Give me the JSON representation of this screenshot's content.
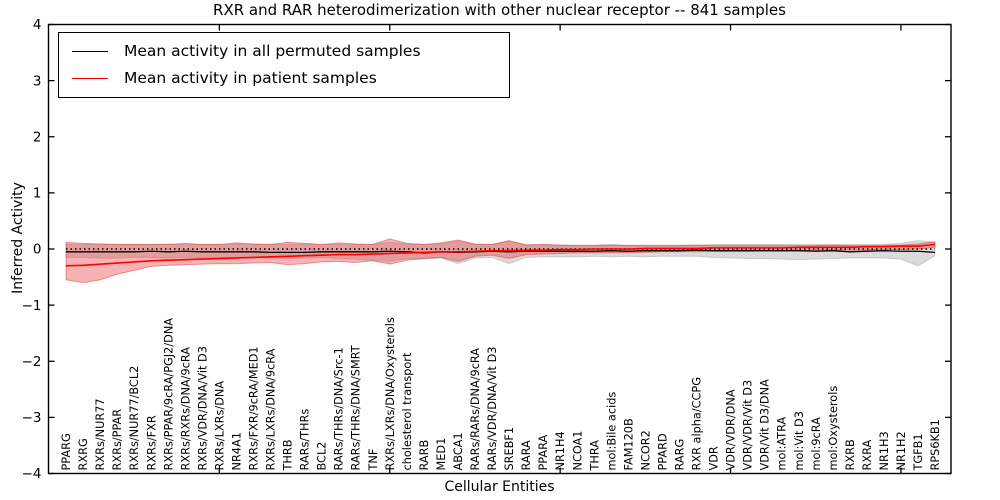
{
  "figure": {
    "title": "RXR and RAR heterodimerization with other nuclear receptor -- 841 samples",
    "xlabel": "Cellular Entities",
    "ylabel": "Inferred Activity",
    "legend": [
      {
        "label": "Mean activity in all permuted samples",
        "color": "#000000"
      },
      {
        "label": "Mean activity in patient samples",
        "color": "#ff0000"
      }
    ]
  },
  "chart_data": {
    "type": "line",
    "title": "RXR and RAR heterodimerization with other nuclear receptor -- 841 samples",
    "xlabel": "Cellular Entities",
    "ylabel": "Inferred Activity",
    "ylim": [
      -4,
      4
    ],
    "yticks": [
      -4,
      -3,
      -2,
      -1,
      0,
      1,
      2,
      3,
      4
    ],
    "grid": false,
    "legend_position": "upper left",
    "reference_line": {
      "y": 0,
      "style": "dotted",
      "color": "#000000"
    },
    "xtick_indices": [
      9,
      19,
      29,
      39,
      49
    ],
    "categories": [
      "PPARG",
      "RXRG",
      "RXRs/NUR77",
      "RXRs/PPAR",
      "RXRs/NUR77/BCL2",
      "RXRs/FXR",
      "RXRs/PPAR/9cRA/PGJ2/DNA",
      "RXRs/RXRs/DNA/9cRA",
      "RXRs/VDR/DNA/Vit D3",
      "RXRs/LXRs/DNA",
      "NR4A1",
      "RXRs/FXR/9cRA/MED1",
      "RXRs/LXRs/DNA/9cRA",
      "THRB",
      "RARs/THRs",
      "BCL2",
      "RARs/THRs/DNA/Src-1",
      "RARs/THRs/DNA/SMRT",
      "TNF",
      "RXRs/LXRs/DNA/Oxysterols",
      "cholesterol transport",
      "RARB",
      "MED1",
      "ABCA1",
      "RARs/RARs/DNA/9cRA",
      "RARs/VDR/DNA/Vit D3",
      "SREBF1",
      "RARA",
      "PPARA",
      "NR1H4",
      "NCOA1",
      "THRA",
      "mol:Bile acids",
      "FAM120B",
      "NCOR2",
      "PPARD",
      "RARG",
      "RXR alpha/CCPG",
      "VDR",
      "VDR/VDR/DNA",
      "VDR/VDR/Vit D3",
      "VDR/Vit D3/DNA",
      "mol:ATRA",
      "mol:Vit D3",
      "mol:9cRA",
      "mol:Oxysterols",
      "RXRB",
      "RXRA",
      "NR1H3",
      "NR1H2",
      "TGFB1",
      "RPS6KB1"
    ],
    "series": [
      {
        "name": "Mean activity in all permuted samples",
        "color": "#000000",
        "band_color": "rgba(125,125,125,0.28)",
        "band_edge_color": "rgba(125,125,125,0.30)",
        "values": [
          -0.05,
          -0.05,
          -0.05,
          -0.05,
          -0.05,
          -0.04,
          -0.05,
          -0.04,
          -0.05,
          -0.05,
          -0.05,
          -0.05,
          -0.06,
          -0.06,
          -0.06,
          -0.05,
          -0.05,
          -0.05,
          -0.05,
          -0.04,
          -0.05,
          -0.07,
          -0.05,
          -0.06,
          -0.05,
          -0.04,
          -0.05,
          -0.04,
          -0.04,
          -0.04,
          -0.04,
          -0.04,
          -0.03,
          -0.04,
          -0.03,
          -0.03,
          -0.03,
          -0.02,
          -0.03,
          -0.03,
          -0.03,
          -0.03,
          -0.03,
          -0.03,
          -0.04,
          -0.03,
          -0.05,
          -0.04,
          -0.03,
          -0.04,
          -0.04,
          -0.06
        ],
        "band_upper": [
          0.08,
          0.08,
          0.09,
          0.08,
          0.08,
          0.08,
          0.09,
          0.08,
          0.08,
          0.08,
          0.09,
          0.08,
          0.08,
          0.08,
          0.09,
          0.08,
          0.08,
          0.08,
          0.08,
          0.12,
          0.09,
          0.08,
          0.09,
          0.14,
          0.08,
          0.08,
          0.14,
          0.08,
          0.08,
          0.07,
          0.07,
          0.07,
          0.08,
          0.07,
          0.07,
          0.07,
          0.07,
          0.07,
          0.08,
          0.08,
          0.08,
          0.08,
          0.08,
          0.08,
          0.08,
          0.08,
          0.08,
          0.08,
          0.08,
          0.1,
          0.15,
          0.12
        ],
        "band_lower": [
          -0.15,
          -0.15,
          -0.16,
          -0.16,
          -0.15,
          -0.15,
          -0.16,
          -0.15,
          -0.16,
          -0.15,
          -0.16,
          -0.15,
          -0.16,
          -0.17,
          -0.16,
          -0.15,
          -0.17,
          -0.18,
          -0.2,
          -0.22,
          -0.17,
          -0.18,
          -0.16,
          -0.26,
          -0.16,
          -0.15,
          -0.26,
          -0.15,
          -0.14,
          -0.14,
          -0.14,
          -0.13,
          -0.14,
          -0.13,
          -0.14,
          -0.13,
          -0.13,
          -0.13,
          -0.15,
          -0.16,
          -0.17,
          -0.17,
          -0.18,
          -0.19,
          -0.18,
          -0.17,
          -0.16,
          -0.16,
          -0.16,
          -0.18,
          -0.3,
          -0.12
        ]
      },
      {
        "name": "Mean activity in patient samples",
        "color": "#ff0000",
        "band_color": "rgba(235,55,55,0.38)",
        "band_edge_color": "rgba(225,45,45,0.45)",
        "values": [
          -0.3,
          -0.29,
          -0.27,
          -0.25,
          -0.23,
          -0.21,
          -0.2,
          -0.19,
          -0.18,
          -0.17,
          -0.16,
          -0.15,
          -0.14,
          -0.13,
          -0.12,
          -0.11,
          -0.1,
          -0.1,
          -0.09,
          -0.08,
          -0.07,
          -0.06,
          -0.05,
          -0.05,
          -0.04,
          -0.03,
          -0.03,
          -0.02,
          -0.02,
          -0.01,
          -0.01,
          0.0,
          0.0,
          0.0,
          0.01,
          0.01,
          0.01,
          0.01,
          0.02,
          0.02,
          0.02,
          0.02,
          0.02,
          0.03,
          0.03,
          0.03,
          0.03,
          0.04,
          0.04,
          0.05,
          0.05,
          0.08
        ],
        "band_upper": [
          0.12,
          0.1,
          0.09,
          0.08,
          0.08,
          0.08,
          0.08,
          0.1,
          0.08,
          0.08,
          0.11,
          0.09,
          0.08,
          0.12,
          0.1,
          0.08,
          0.11,
          0.09,
          0.08,
          0.18,
          0.1,
          0.08,
          0.11,
          0.16,
          0.09,
          0.08,
          0.15,
          0.07,
          0.08,
          0.07,
          0.06,
          0.06,
          0.07,
          0.06,
          0.06,
          0.06,
          0.06,
          0.07,
          0.06,
          0.06,
          0.06,
          0.06,
          0.06,
          0.06,
          0.06,
          0.07,
          0.06,
          0.06,
          0.07,
          0.07,
          0.09,
          0.13
        ],
        "band_lower": [
          -0.55,
          -0.6,
          -0.55,
          -0.45,
          -0.38,
          -0.31,
          -0.29,
          -0.28,
          -0.27,
          -0.26,
          -0.26,
          -0.25,
          -0.24,
          -0.28,
          -0.26,
          -0.23,
          -0.22,
          -0.24,
          -0.21,
          -0.27,
          -0.2,
          -0.17,
          -0.15,
          -0.22,
          -0.13,
          -0.11,
          -0.17,
          -0.1,
          -0.09,
          -0.08,
          -0.07,
          -0.07,
          -0.07,
          -0.06,
          -0.06,
          -0.05,
          -0.05,
          -0.05,
          -0.04,
          -0.04,
          -0.04,
          -0.03,
          -0.03,
          -0.03,
          -0.02,
          -0.02,
          -0.02,
          -0.02,
          -0.01,
          -0.01,
          0.0,
          0.03
        ]
      }
    ]
  }
}
